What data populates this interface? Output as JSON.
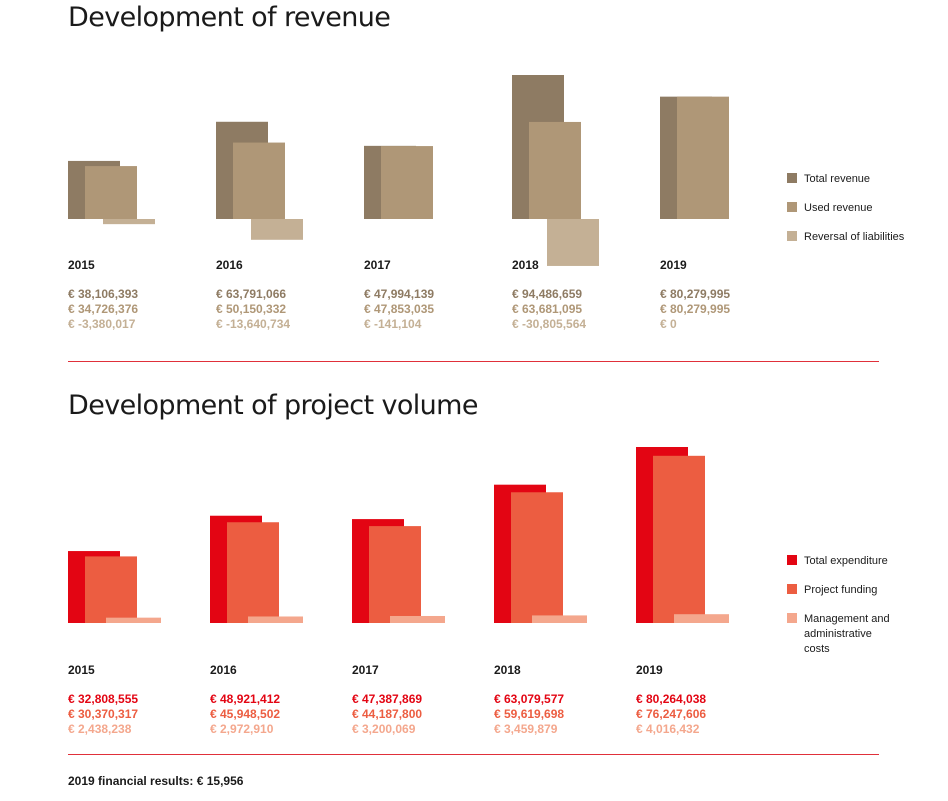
{
  "chart_data": [
    {
      "type": "bar",
      "title": "Development of revenue",
      "categories": [
        "2015",
        "2016",
        "2017",
        "2018",
        "2019"
      ],
      "series": [
        {
          "name": "Total revenue",
          "color": "#8e7b63",
          "values": [
            38106393,
            63791066,
            47994139,
            94486659,
            80279995
          ]
        },
        {
          "name": "Used revenue",
          "color": "#af9777",
          "values": [
            34726376,
            50150332,
            47853035,
            63681095,
            80279995
          ]
        },
        {
          "name": "Reversal of liabilities",
          "color": "#c4b095",
          "values": [
            -3380017,
            -13640734,
            -141104,
            -30805564,
            0
          ]
        }
      ],
      "value_labels": [
        [
          "€ 38,106,393",
          "€ 34,726,376",
          "€ -3,380,017"
        ],
        [
          "€ 63,791,066",
          "€ 50,150,332",
          "€ -13,640,734"
        ],
        [
          "€ 47,994,139",
          "€ 47,853,035",
          "€ -141,104"
        ],
        [
          "€ 94,486,659",
          "€ 63,681,095",
          "€ -30,805,564"
        ],
        [
          "€ 80,279,995",
          "€ 80,279,995",
          "€ 0"
        ]
      ],
      "legend_position": "right"
    },
    {
      "type": "bar",
      "title": "Development of project volume",
      "categories": [
        "2015",
        "2016",
        "2017",
        "2018",
        "2019"
      ],
      "series": [
        {
          "name": "Total expenditure",
          "color": "#e30513",
          "values": [
            32808555,
            48921412,
            47387869,
            63079577,
            80264038
          ]
        },
        {
          "name": "Project funding",
          "color": "#ec5d41",
          "values": [
            30370317,
            45948502,
            44187800,
            59619698,
            76247606
          ]
        },
        {
          "name": "Management and administrative costs",
          "color": "#f4a78d",
          "values": [
            2438238,
            2972910,
            3200069,
            3459879,
            4016432
          ]
        }
      ],
      "value_labels": [
        [
          "€ 32,808,555",
          "€ 30,370,317",
          "€ 2,438,238"
        ],
        [
          "€ 48,921,412",
          "€ 45,948,502",
          "€ 2,972,910"
        ],
        [
          "€ 47,387,869",
          "€ 44,187,800",
          "€ 3,200,069"
        ],
        [
          "€ 63,079,577",
          "€ 59,619,698",
          "€ 3,459,879"
        ],
        [
          "€ 80,264,038",
          "€ 76,247,606",
          "€ 4,016,432"
        ]
      ],
      "legend_position": "right"
    }
  ],
  "legend_revenue": [
    "Total revenue",
    "Used revenue",
    "Reversal of liabilities"
  ],
  "legend_project": [
    "Total expenditure",
    "Project funding",
    "Management and\nadministrative\ncosts"
  ],
  "footer": "2019 financial results: € 15,956"
}
